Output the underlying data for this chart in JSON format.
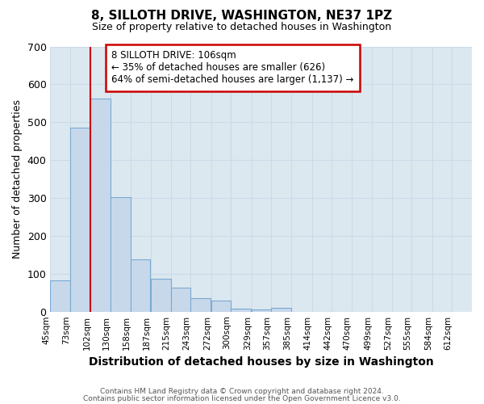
{
  "title": "8, SILLOTH DRIVE, WASHINGTON, NE37 1PZ",
  "subtitle": "Size of property relative to detached houses in Washington",
  "xlabel": "Distribution of detached houses by size in Washington",
  "ylabel": "Number of detached properties",
  "bar_left_edges": [
    45,
    73,
    102,
    130,
    158,
    187,
    215,
    243,
    272,
    300,
    329,
    357,
    385,
    414,
    442,
    470,
    499,
    527,
    555,
    584
  ],
  "bar_heights": [
    82,
    485,
    563,
    302,
    138,
    86,
    64,
    36,
    29,
    8,
    6,
    11,
    0,
    0,
    0,
    0,
    0,
    0,
    0,
    0
  ],
  "bin_width": 28,
  "bar_color": "#c8d8eb",
  "bar_edge_color": "#7aaad0",
  "vline_x": 102,
  "vline_color": "#cc0000",
  "ylim": [
    0,
    700
  ],
  "yticks": [
    0,
    100,
    200,
    300,
    400,
    500,
    600,
    700
  ],
  "xtick_labels": [
    "45sqm",
    "73sqm",
    "102sqm",
    "130sqm",
    "158sqm",
    "187sqm",
    "215sqm",
    "243sqm",
    "272sqm",
    "300sqm",
    "329sqm",
    "357sqm",
    "385sqm",
    "414sqm",
    "442sqm",
    "470sqm",
    "499sqm",
    "527sqm",
    "555sqm",
    "584sqm",
    "612sqm"
  ],
  "annotation_title": "8 SILLOTH DRIVE: 106sqm",
  "annotation_line1": "← 35% of detached houses are smaller (626)",
  "annotation_line2": "64% of semi-detached houses are larger (1,137) →",
  "annotation_box_color": "#ffffff",
  "annotation_box_edge": "#cc0000",
  "grid_color": "#ccd9e8",
  "plot_bg_color": "#dce8f0",
  "fig_bg_color": "#ffffff",
  "footer1": "Contains HM Land Registry data © Crown copyright and database right 2024.",
  "footer2": "Contains public sector information licensed under the Open Government Licence v3.0."
}
